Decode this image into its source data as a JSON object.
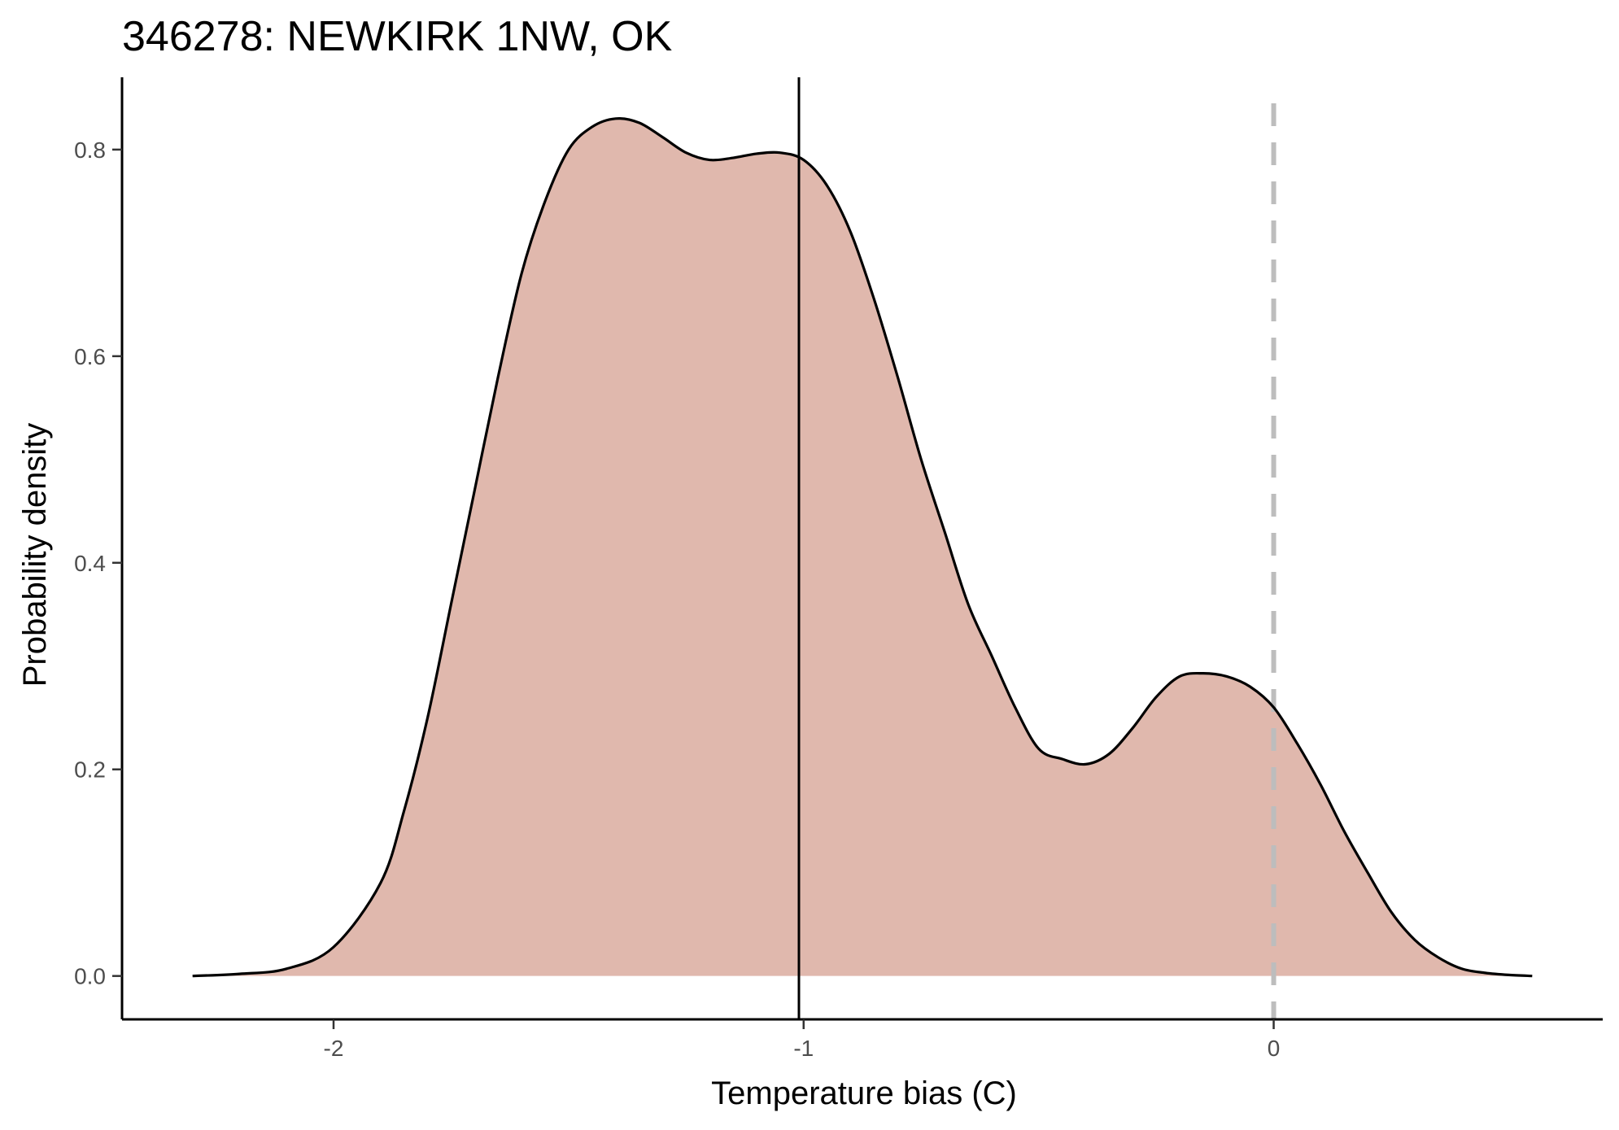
{
  "chart_data": {
    "type": "area",
    "title": "346278: NEWKIRK 1NW, OK",
    "xlabel": "Temperature bias (C)",
    "ylabel": "Probability density",
    "xlim": [
      -2.45,
      0.7
    ],
    "ylim": [
      -0.042,
      0.87
    ],
    "x_ticks": [
      {
        "value": -2,
        "label": "-2"
      },
      {
        "value": -1,
        "label": "-1"
      },
      {
        "value": 0,
        "label": "0"
      }
    ],
    "y_ticks": [
      {
        "value": 0.0,
        "label": "0.0"
      },
      {
        "value": 0.2,
        "label": "0.2"
      },
      {
        "value": 0.4,
        "label": "0.4"
      },
      {
        "value": 0.6,
        "label": "0.6"
      },
      {
        "value": 0.8,
        "label": "0.8"
      }
    ],
    "grid": false,
    "fill_color": "#e0b8ad",
    "line_color": "#000000",
    "series": [
      {
        "x": [
          -2.3,
          -2.2,
          -2.1,
          -2.0,
          -1.9,
          -1.85,
          -1.8,
          -1.75,
          -1.7,
          -1.65,
          -1.6,
          -1.55,
          -1.5,
          -1.45,
          -1.4,
          -1.35,
          -1.3,
          -1.25,
          -1.2,
          -1.15,
          -1.1,
          -1.05,
          -1.0,
          -0.95,
          -0.9,
          -0.85,
          -0.8,
          -0.75,
          -0.7,
          -0.65,
          -0.6,
          -0.55,
          -0.5,
          -0.45,
          -0.4,
          -0.35,
          -0.3,
          -0.25,
          -0.2,
          -0.15,
          -0.1,
          -0.05,
          0.0,
          0.05,
          0.1,
          0.15,
          0.2,
          0.25,
          0.3,
          0.35,
          0.4,
          0.45,
          0.5,
          0.55
        ],
        "y": [
          0.0,
          0.002,
          0.007,
          0.028,
          0.09,
          0.16,
          0.25,
          0.36,
          0.47,
          0.58,
          0.68,
          0.75,
          0.8,
          0.822,
          0.83,
          0.826,
          0.812,
          0.797,
          0.79,
          0.792,
          0.796,
          0.797,
          0.79,
          0.765,
          0.72,
          0.655,
          0.58,
          0.5,
          0.43,
          0.36,
          0.31,
          0.26,
          0.22,
          0.21,
          0.205,
          0.215,
          0.24,
          0.27,
          0.29,
          0.293,
          0.29,
          0.28,
          0.26,
          0.225,
          0.185,
          0.14,
          0.1,
          0.062,
          0.035,
          0.018,
          0.007,
          0.003,
          0.001,
          0.0
        ]
      }
    ],
    "reference_lines": [
      {
        "axis": "x",
        "value": -1.01,
        "style": "solid",
        "color": "#000000"
      },
      {
        "axis": "x",
        "value": 0.0,
        "style": "dashed",
        "color": "#bdbdbd"
      }
    ]
  }
}
